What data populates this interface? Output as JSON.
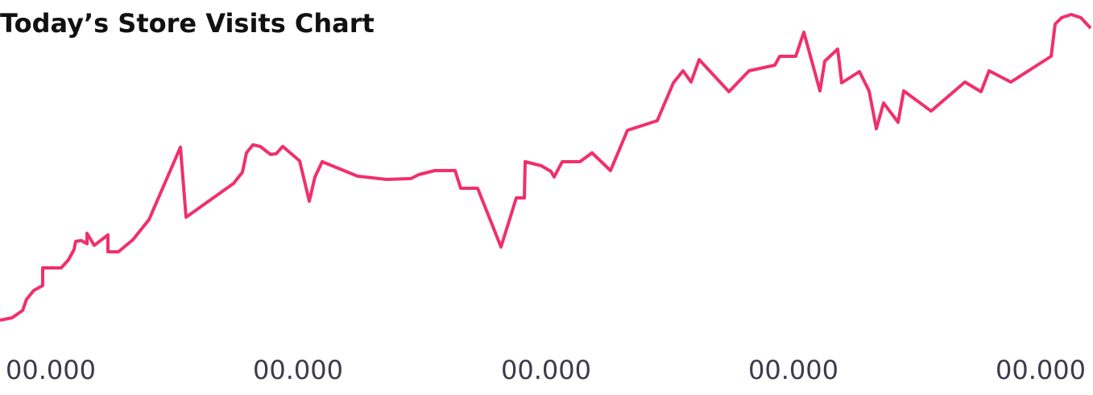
{
  "chart_data": {
    "type": "line",
    "title": "Today’s Store Visits Chart",
    "x": [
      0,
      15,
      28,
      33,
      42,
      53,
      53,
      76,
      85,
      92,
      94,
      101,
      108,
      108,
      117,
      134,
      134,
      147,
      165,
      185,
      224,
      231,
      290,
      301,
      306,
      314,
      323,
      336,
      343,
      351,
      372,
      384,
      391,
      400,
      444,
      480,
      510,
      520,
      540,
      565,
      572,
      593,
      622,
      641,
      651,
      652,
      672,
      684,
      688,
      698,
      720,
      735,
      758,
      779,
      816,
      836,
      848,
      858,
      868,
      905,
      930,
      962,
      968,
      988,
      998,
      1018,
      1024,
      1040,
      1045,
      1067,
      1079,
      1088,
      1097,
      1115,
      1122,
      1156,
      1198,
      1218,
      1228,
      1255,
      1305,
      1310,
      1318,
      1330,
      1342,
      1354
    ],
    "series": [
      {
        "color": "#f0306a",
        "values": [
          2,
          5,
          14,
          28,
          39,
          45,
          67,
          67,
          77,
          90,
          100,
          101,
          97,
          110,
          95,
          108,
          87,
          87,
          102,
          127,
          217,
          130,
          172,
          186,
          210,
          220,
          218,
          208,
          209,
          218,
          200,
          150,
          180,
          199,
          181,
          177,
          178,
          183,
          188,
          188,
          166,
          166,
          93,
          154,
          154,
          199,
          194,
          187,
          180,
          199,
          199,
          210,
          188,
          238,
          250,
          297,
          312,
          298,
          326,
          286,
          312,
          319,
          330,
          330,
          360,
          287,
          324,
          339,
          297,
          311,
          287,
          240,
          272,
          248,
          287,
          262,
          298,
          286,
          312,
          298,
          330,
          370,
          378,
          382,
          378,
          365
        ]
      }
    ],
    "xlim": [
      0,
      1357
    ],
    "ylim": [
      0,
      400
    ],
    "xticks": [
      {
        "value": 63,
        "label": "00.000"
      },
      {
        "value": 370,
        "label": "00.000"
      },
      {
        "value": 678,
        "label": "00.000"
      },
      {
        "value": 985,
        "label": "00.000"
      },
      {
        "value": 1292,
        "label": "00.000"
      }
    ]
  }
}
